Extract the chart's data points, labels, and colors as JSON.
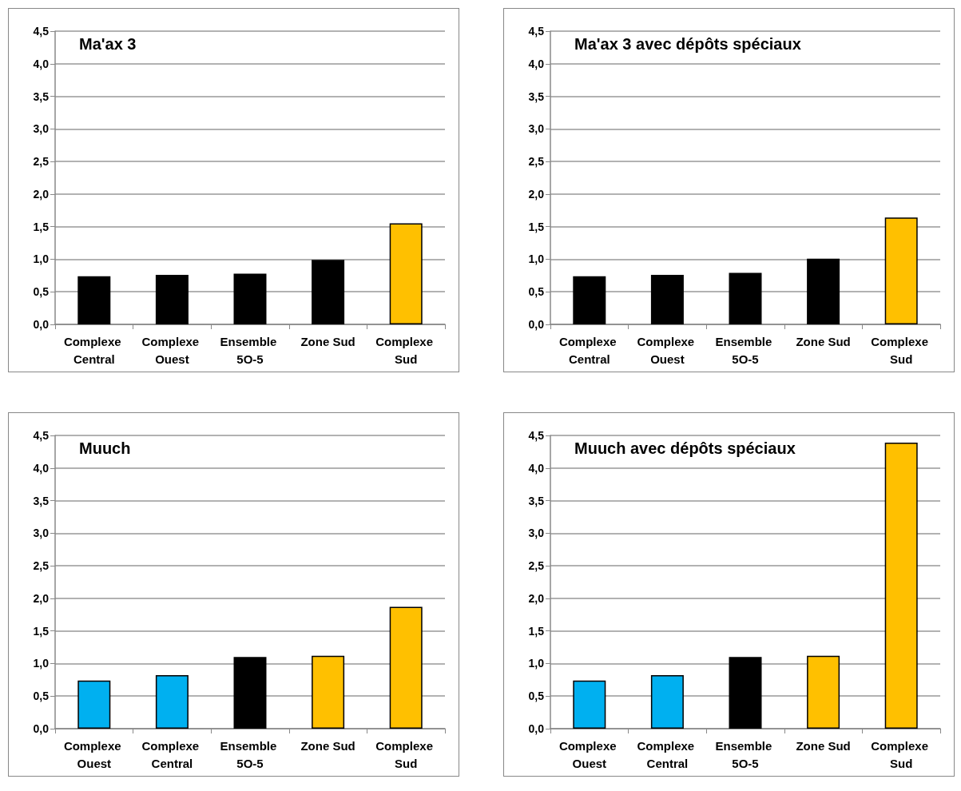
{
  "chart_data": [
    {
      "type": "bar",
      "title": "Ma'ax 3",
      "categories": [
        "Complexe Central",
        "Complexe Ouest",
        "Ensemble 5O-5",
        "Zone Sud",
        "Complexe Sud"
      ],
      "values": [
        0.74,
        0.76,
        0.78,
        0.99,
        1.55
      ],
      "colors": [
        "#000000",
        "#000000",
        "#000000",
        "#000000",
        "#ffc000"
      ],
      "ylim": [
        0,
        4.5
      ],
      "yticks": [
        {
          "value": 0,
          "label": "0,0"
        },
        {
          "value": 0.5,
          "label": "0,5"
        },
        {
          "value": 1,
          "label": "1,0"
        },
        {
          "value": 1.5,
          "label": "1,5"
        },
        {
          "value": 2,
          "label": "2,0"
        },
        {
          "value": 2.5,
          "label": "2,5"
        },
        {
          "value": 3,
          "label": "3,0"
        },
        {
          "value": 3.5,
          "label": "3,5"
        },
        {
          "value": 4,
          "label": "4,0"
        },
        {
          "value": 4.5,
          "label": "4,5"
        }
      ],
      "grid": "y"
    },
    {
      "type": "bar",
      "title": "Ma'ax 3 avec dépôts spéciaux",
      "categories": [
        "Complexe Central",
        "Complexe Ouest",
        "Ensemble 5O-5",
        "Zone Sud",
        "Complexe Sud"
      ],
      "values": [
        0.74,
        0.76,
        0.79,
        1.01,
        1.64
      ],
      "colors": [
        "#000000",
        "#000000",
        "#000000",
        "#000000",
        "#ffc000"
      ],
      "ylim": [
        0,
        4.5
      ],
      "yticks": [
        {
          "value": 0,
          "label": "0,0"
        },
        {
          "value": 0.5,
          "label": "0,5"
        },
        {
          "value": 1,
          "label": "1,0"
        },
        {
          "value": 1.5,
          "label": "1,5"
        },
        {
          "value": 2,
          "label": "2,0"
        },
        {
          "value": 2.5,
          "label": "2,5"
        },
        {
          "value": 3,
          "label": "3,0"
        },
        {
          "value": 3.5,
          "label": "3,5"
        },
        {
          "value": 4,
          "label": "4,0"
        },
        {
          "value": 4.5,
          "label": "4,5"
        }
      ],
      "grid": "y"
    },
    {
      "type": "bar",
      "title": "Muuch",
      "categories": [
        "Complexe Ouest",
        "Complexe Central",
        "Ensemble 5O-5",
        "Zone Sud",
        "Complexe Sud"
      ],
      "values": [
        0.74,
        0.82,
        1.1,
        1.12,
        1.87
      ],
      "colors": [
        "#00b0f0",
        "#00b0f0",
        "#000000",
        "#ffc000",
        "#ffc000"
      ],
      "ylim": [
        0,
        4.5
      ],
      "yticks": [
        {
          "value": 0,
          "label": "0,0"
        },
        {
          "value": 0.5,
          "label": "0,5"
        },
        {
          "value": 1,
          "label": "1,0"
        },
        {
          "value": 1.5,
          "label": "1,5"
        },
        {
          "value": 2,
          "label": "2,0"
        },
        {
          "value": 2.5,
          "label": "2,5"
        },
        {
          "value": 3,
          "label": "3,0"
        },
        {
          "value": 3.5,
          "label": "3,5"
        },
        {
          "value": 4,
          "label": "4,0"
        },
        {
          "value": 4.5,
          "label": "4,5"
        }
      ],
      "grid": "y"
    },
    {
      "type": "bar",
      "title": "Muuch avec dépôts spéciaux",
      "categories": [
        "Complexe Ouest",
        "Complexe Central",
        "Ensemble 5O-5",
        "Zone Sud",
        "Complexe Sud"
      ],
      "values": [
        0.74,
        0.82,
        1.1,
        1.12,
        4.39
      ],
      "colors": [
        "#00b0f0",
        "#00b0f0",
        "#000000",
        "#ffc000",
        "#ffc000"
      ],
      "ylim": [
        0,
        4.5
      ],
      "yticks": [
        {
          "value": 0,
          "label": "0,0"
        },
        {
          "value": 0.5,
          "label": "0,5"
        },
        {
          "value": 1,
          "label": "1,0"
        },
        {
          "value": 1.5,
          "label": "1,5"
        },
        {
          "value": 2,
          "label": "2,0"
        },
        {
          "value": 2.5,
          "label": "2,5"
        },
        {
          "value": 3,
          "label": "3,0"
        },
        {
          "value": 3.5,
          "label": "3,5"
        },
        {
          "value": 4,
          "label": "4,0"
        },
        {
          "value": 4.5,
          "label": "4,5"
        }
      ],
      "grid": "y"
    }
  ]
}
